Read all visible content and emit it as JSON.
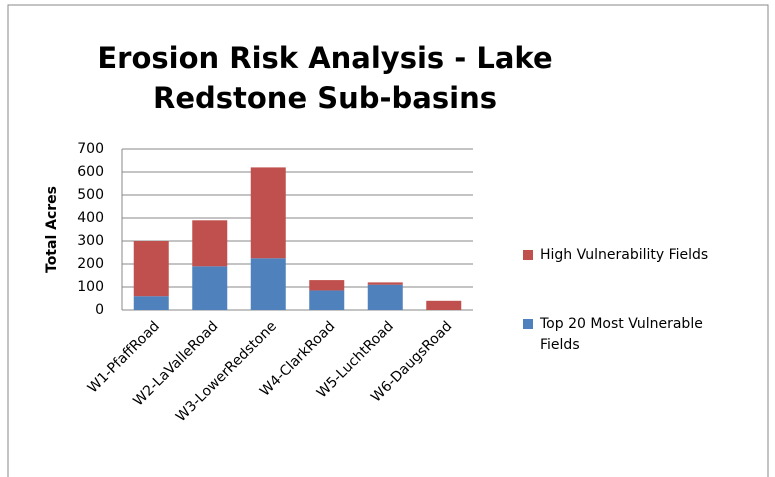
{
  "chart_data": {
    "type": "stacked_bar",
    "title": "Erosion Risk Analysis - Lake Redstone Sub-basins",
    "ylabel": "Total Acres",
    "categories": [
      "W1-PfaffRoad",
      "W2-LaValleRoad",
      "W3-LowerRedstone",
      "W4-ClarkRoad",
      "W5-LuchtRoad",
      "W6-DaugsRoad"
    ],
    "series": [
      {
        "name": "Top 20 Most Vulnerable Fields",
        "color": "#4f81bd",
        "values": [
          60,
          190,
          225,
          85,
          110,
          0
        ]
      },
      {
        "name": "High Vulnerability Fields",
        "color": "#c0504d",
        "values": [
          240,
          200,
          395,
          45,
          10,
          40
        ]
      }
    ],
    "ylim": [
      0,
      700
    ],
    "yticks": [
      0,
      100,
      200,
      300,
      400,
      500,
      600,
      700
    ],
    "grid": true,
    "legend": "right"
  }
}
